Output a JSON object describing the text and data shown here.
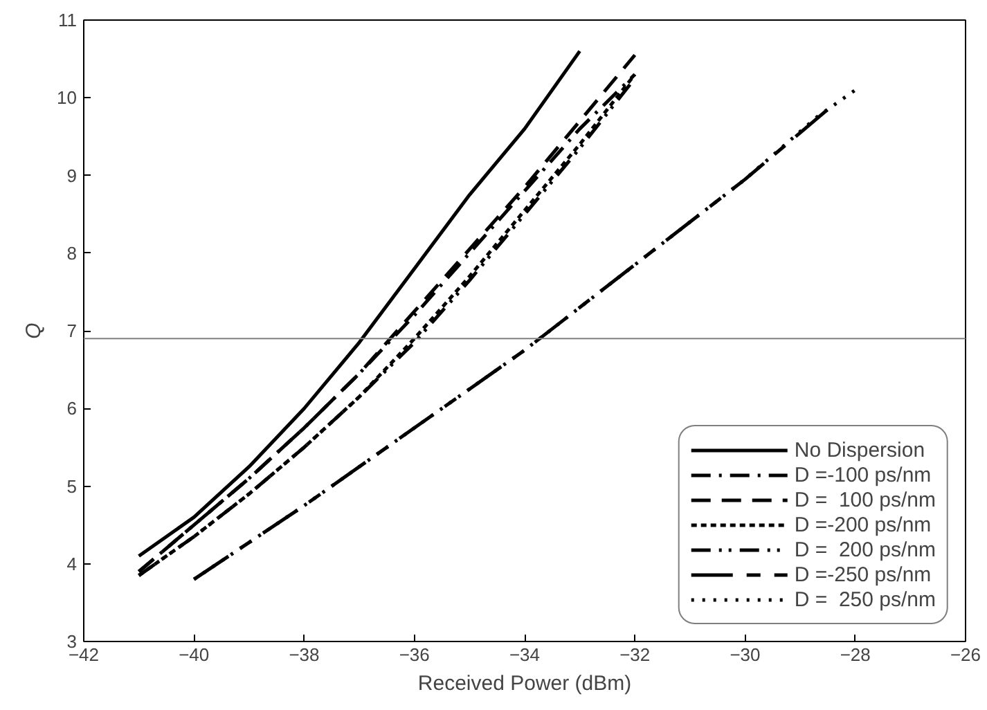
{
  "chart_data": {
    "type": "line",
    "xlabel": "Received Power (dBm)",
    "ylabel": "Q",
    "xlim": [
      -42,
      -26
    ],
    "xticks": [
      -42,
      -40,
      -38,
      -36,
      -34,
      -32,
      -30,
      -28,
      -26
    ],
    "ylim": [
      3,
      11
    ],
    "yticks": [
      3,
      4,
      5,
      6,
      7,
      8,
      9,
      10,
      11
    ],
    "grid": false,
    "legend": "bottom right",
    "marker": "none",
    "ref_lines": [
      {
        "axis": "y",
        "value": 6.9,
        "color": "#808080"
      }
    ],
    "series": [
      {
        "name": "No Dispersion",
        "color": "#000000",
        "line_style": "solid",
        "x": [
          -41,
          -40,
          -39,
          -38,
          -37,
          -36,
          -35,
          -34,
          -33
        ],
        "values": [
          4.1,
          4.6,
          5.25,
          6.0,
          6.85,
          7.8,
          8.75,
          9.6,
          10.6
        ]
      },
      {
        "name": "D =-100 ps/nm",
        "color": "#000000",
        "line_style": "dashdot",
        "x": [
          -41,
          -40,
          -39,
          -38,
          -37,
          -36,
          -35,
          -34,
          -33,
          -32
        ],
        "values": [
          3.9,
          4.5,
          5.1,
          5.75,
          6.45,
          7.2,
          8.0,
          8.8,
          9.6,
          10.3
        ]
      },
      {
        "name": "D =  100 ps/nm",
        "color": "#000000",
        "line_style": "dashed",
        "x": [
          -41,
          -40,
          -39,
          -38,
          -37,
          -36,
          -35,
          -34,
          -33,
          -32
        ],
        "values": [
          3.9,
          4.5,
          5.1,
          5.75,
          6.45,
          7.25,
          8.05,
          8.85,
          9.7,
          10.55
        ]
      },
      {
        "name": "D =-200 ps/nm",
        "color": "#000000",
        "line_style": "dotted",
        "x": [
          -41,
          -40,
          -39,
          -38,
          -37,
          -36,
          -35,
          -34,
          -33,
          -32
        ],
        "values": [
          3.85,
          4.35,
          4.9,
          5.5,
          6.15,
          6.9,
          7.7,
          8.55,
          9.4,
          10.3
        ]
      },
      {
        "name": "D =  200 ps/nm",
        "color": "#000000",
        "line_style": "dashdotdot",
        "x": [
          -41,
          -40,
          -39,
          -38,
          -37,
          -36,
          -35,
          -34,
          -33,
          -32
        ],
        "values": [
          3.85,
          4.35,
          4.9,
          5.5,
          6.15,
          6.85,
          7.65,
          8.5,
          9.35,
          10.25
        ]
      },
      {
        "name": "D =-250 ps/nm",
        "color": "#000000",
        "line_style": "longdash",
        "x": [
          -40,
          -38,
          -36,
          -34,
          -32,
          -30,
          -28.5
        ],
        "values": [
          3.8,
          4.75,
          5.75,
          6.75,
          7.85,
          8.95,
          9.85
        ]
      },
      {
        "name": "D =  250 ps/nm",
        "color": "#000000",
        "line_style": "sparsedot",
        "x": [
          -40,
          -38,
          -36,
          -34,
          -32,
          -30,
          -28.7,
          -28
        ],
        "values": [
          3.8,
          4.75,
          5.75,
          6.75,
          7.85,
          8.95,
          9.75,
          10.1
        ]
      }
    ]
  }
}
